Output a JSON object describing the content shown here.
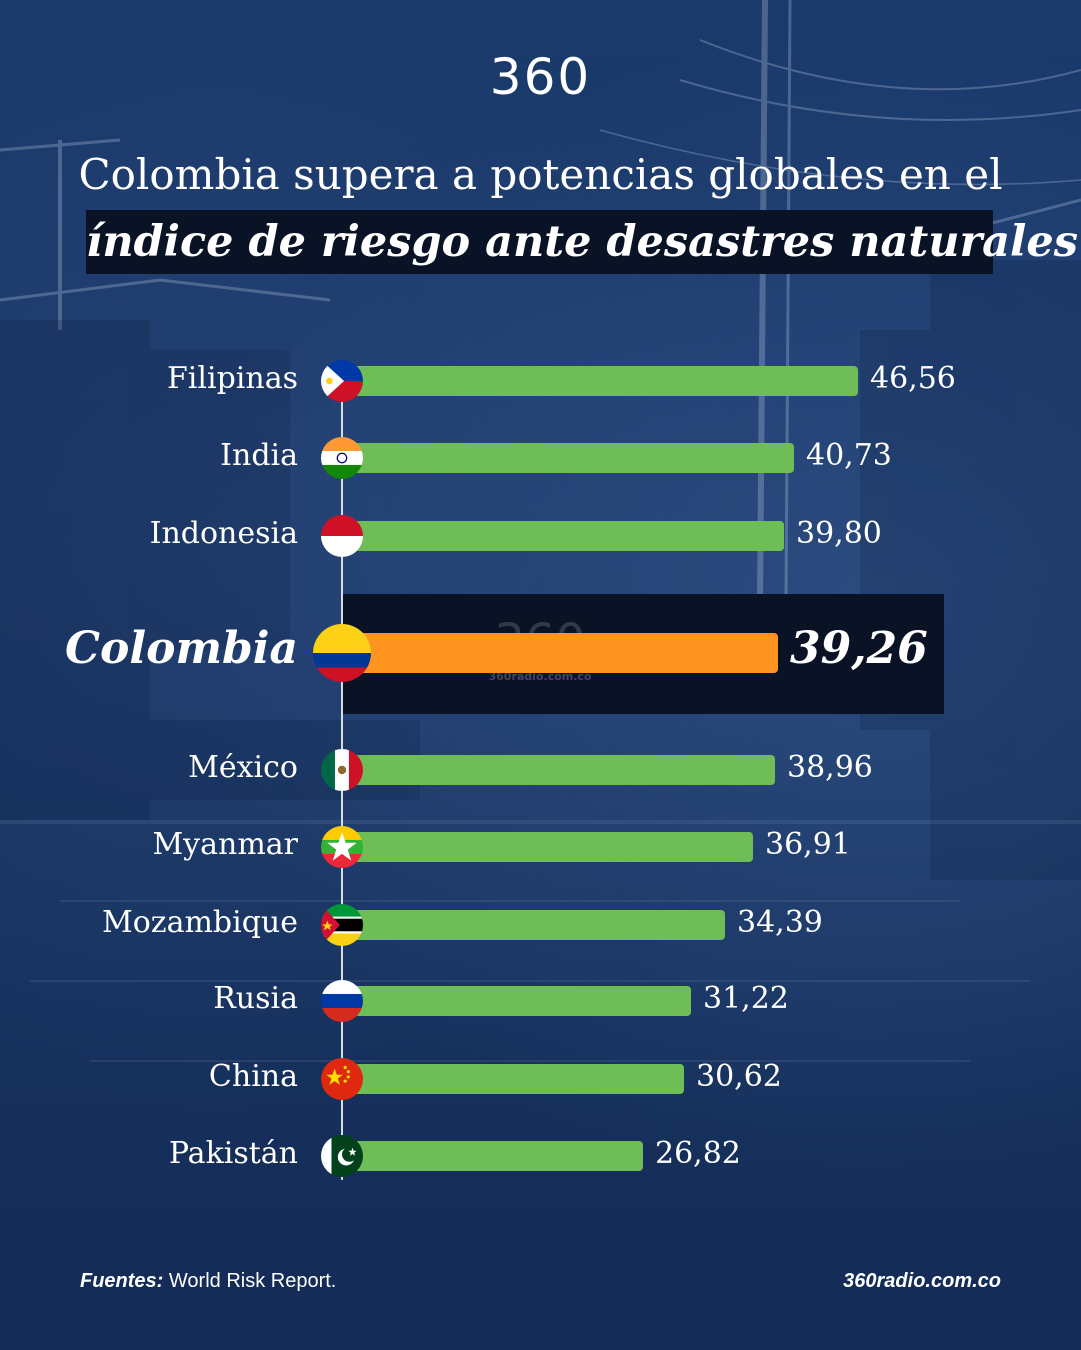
{
  "brand": {
    "logo": "360"
  },
  "header": {
    "title_line1": "Colombia supera a potencias globales en el",
    "title_line2": "índice de riesgo ante desastres naturales"
  },
  "watermark": {
    "logo": "360",
    "site": "360radio.com.co"
  },
  "colors": {
    "bar": "#6fbd57",
    "highlight_bar": "#ff9420",
    "background": "#17325f",
    "highlight_box": "#0a1325"
  },
  "chart_data": {
    "type": "bar",
    "orientation": "horizontal",
    "categories": [
      "Filipinas",
      "India",
      "Indonesia",
      "Colombia",
      "México",
      "Myanmar",
      "Mozambique",
      "Rusia",
      "China",
      "Pakistán"
    ],
    "values": [
      46.56,
      40.73,
      39.8,
      39.26,
      38.96,
      36.91,
      34.39,
      31.22,
      30.62,
      26.82
    ],
    "value_labels": [
      "46,56",
      "40,73",
      "39,80",
      "39,26",
      "38,96",
      "36,91",
      "34,39",
      "31,22",
      "30,62",
      "26,82"
    ],
    "highlight": "Colombia",
    "flag_icons": [
      "philippines-flag-icon",
      "india-flag-icon",
      "indonesia-flag-icon",
      "colombia-flag-icon",
      "mexico-flag-icon",
      "myanmar-flag-icon",
      "mozambique-flag-icon",
      "russia-flag-icon",
      "china-flag-icon",
      "pakistan-flag-icon"
    ],
    "grid": false,
    "legend": "none"
  },
  "footer": {
    "source_label": "Fuentes:",
    "source_text": " World Risk Report.",
    "site": "360radio.com.co"
  }
}
